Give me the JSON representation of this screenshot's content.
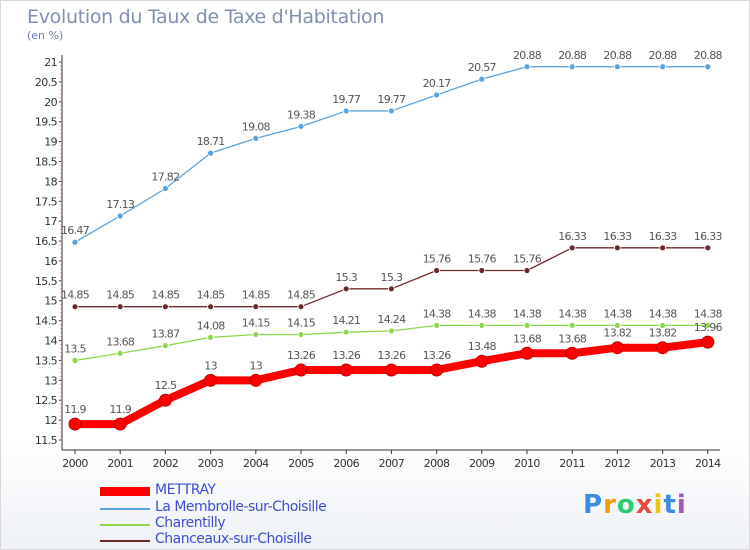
{
  "header": {
    "title": "Evolution du Taux de Taxe d'Habitation",
    "unit": "(en %)"
  },
  "chart_data": {
    "type": "line",
    "title": "Evolution du Taux de Taxe d'Habitation",
    "ylabel": "(en %)",
    "xlabel": "",
    "x": [
      "2000",
      "2001",
      "2002",
      "2003",
      "2004",
      "2005",
      "2006",
      "2007",
      "2008",
      "2009",
      "2010",
      "2011",
      "2012",
      "2013",
      "2014"
    ],
    "ylim": [
      11.5,
      21
    ],
    "yticks": [
      "11.5",
      "12",
      "12.5",
      "13",
      "13.5",
      "14",
      "14.5",
      "15",
      "15.5",
      "16",
      "16.5",
      "17",
      "17.5",
      "18",
      "18.5",
      "19",
      "19.5",
      "20",
      "20.5",
      "21"
    ],
    "grid": false,
    "legend_position": "bottom-left",
    "series": [
      {
        "name": "METTRAY",
        "color": "#ff0000",
        "values": [
          11.9,
          11.9,
          12.5,
          13,
          13,
          13.26,
          13.26,
          13.26,
          13.26,
          13.48,
          13.68,
          13.68,
          13.82,
          13.82,
          13.96
        ],
        "labels": [
          "11.9",
          "11.9",
          "12.5",
          "13",
          "13",
          "13.26",
          "13.26",
          "13.26",
          "13.26",
          "13.48",
          "13.68",
          "13.68",
          "13.82",
          "13.82",
          "13.96"
        ]
      },
      {
        "name": "La Membrolle-sur-Choisille",
        "color": "#5ba3dc",
        "values": [
          16.47,
          17.13,
          17.82,
          18.71,
          19.08,
          19.38,
          19.77,
          19.77,
          20.17,
          20.57,
          20.88,
          20.88,
          20.88,
          20.88,
          20.88
        ],
        "labels": [
          "16.47",
          "17.13",
          "17.82",
          "18.71",
          "19.08",
          "19.38",
          "19.77",
          "19.77",
          "20.17",
          "20.57",
          "20.88",
          "20.88",
          "20.88",
          "20.88",
          "20.88"
        ]
      },
      {
        "name": "Charentilly",
        "color": "#8fd64e",
        "values": [
          13.5,
          13.68,
          13.87,
          14.08,
          14.15,
          14.15,
          14.21,
          14.24,
          14.38,
          14.38,
          14.38,
          14.38,
          14.38,
          14.38,
          14.38
        ],
        "labels": [
          "13.5",
          "13.68",
          "13.87",
          "14.08",
          "14.15",
          "14.15",
          "14.21",
          "14.24",
          "14.38",
          "14.38",
          "14.38",
          "14.38",
          "14.38",
          "14.38",
          "14.38"
        ]
      },
      {
        "name": "Chanceaux-sur-Choisille",
        "color": "#6b2b2b",
        "values": [
          14.85,
          14.85,
          14.85,
          14.85,
          14.85,
          14.85,
          15.3,
          15.3,
          15.76,
          15.76,
          15.76,
          16.33,
          16.33,
          16.33,
          16.33
        ],
        "labels": [
          "14.85",
          "14.85",
          "14.85",
          "14.85",
          "14.85",
          "14.85",
          "15.3",
          "15.3",
          "15.76",
          "15.76",
          "15.76",
          "16.33",
          "16.33",
          "16.33",
          "16.33"
        ]
      }
    ]
  },
  "logo": {
    "letters": [
      "P",
      "r",
      "o",
      "x",
      "i",
      "t",
      "i"
    ],
    "colors": [
      "#3b8ede",
      "#f39c12",
      "#2ecc71",
      "#e74c3c",
      "#f1c40f",
      "#3b8ede",
      "#9b59b6"
    ]
  },
  "colors": {
    "axis": "#333333",
    "label_text": "#555555",
    "tick_text": "#333333"
  }
}
